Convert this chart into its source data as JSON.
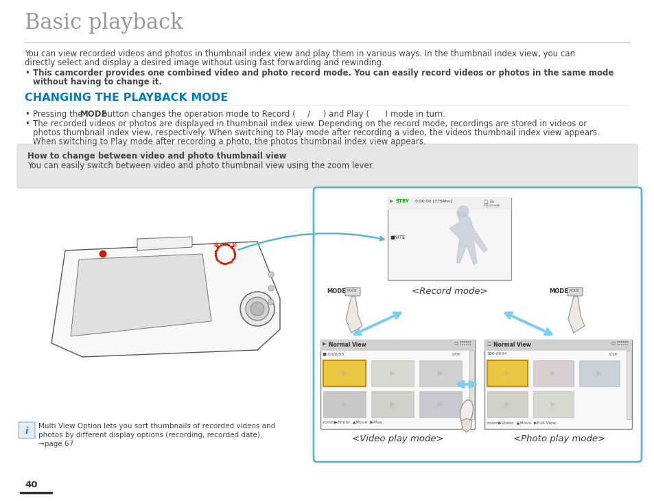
{
  "title": "Basic playback",
  "title_fontsize": 22,
  "title_color": "#999999",
  "line_color": "#aaaaaa",
  "bg_color": "#ffffff",
  "section_color": "#007bbb",
  "section_title": "CHANGING THE PLAYBACK MODE",
  "section_fontsize": 11.5,
  "gray_box_color": "#e6e6e6",
  "gray_box_title": "How to change between video and photo thumbnail view",
  "gray_box_text": "You can easily switch between video and photo thumbnail view using the zoom lever.",
  "body_text_color": "#444444",
  "body_fontsize": 8.5,
  "small_fontsize": 7.5,
  "blue_border_color": "#5ab4d6",
  "page_number": "40",
  "bottom_line_color": "#333333",
  "intro_line1": "You can view recorded videos and photos in thumbnail index view and play them in various ways. In the thumbnail index view, you can",
  "intro_line2": "directly select and display a desired image without using fast forwarding and rewinding.",
  "bullet1_line1": "This camcorder provides one combined video and photo record mode. You can easily record videos or photos in the same mode",
  "bullet1_line2": "without having to change it.",
  "bullet3_line1": "The recorded videos or photos are displayed in thumbnail index view. Depending on the record mode, recordings are stored in videos or",
  "bullet3_line2": "photos thumbnail index view, respectively. When switching to Play mode after recording a video, the videos thumbnail index view appears.",
  "bullet3_line3": "When switching to Play mode after recording a photo, the photos thumbnail index view appears.",
  "note_line1": "Multi View Option lets you sort thumbnails of recorded videos and",
  "note_line2": "photos by different display options (recording, recorded date).",
  "note_line3": "→page 67",
  "record_mode_label": "<Record mode>",
  "video_mode_label": "<Video play mode>",
  "photo_mode_label": "<Photo play mode>",
  "vid_header": "Normal View",
  "pho_header": "Normal View"
}
